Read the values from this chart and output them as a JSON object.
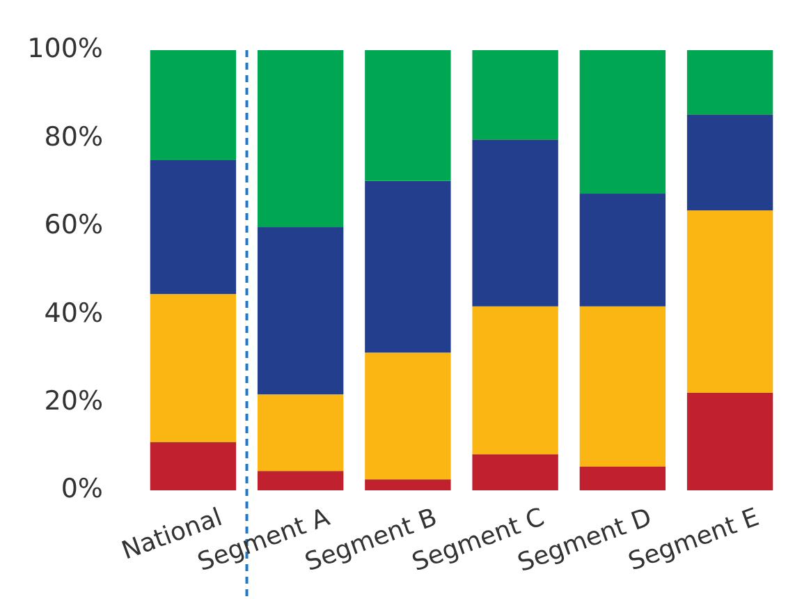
{
  "chart_data": {
    "type": "bar",
    "stacked": true,
    "categories": [
      "National",
      "Segment A",
      "Segment B",
      "Segment C",
      "Segment D",
      "Segment E"
    ],
    "series": [
      {
        "color": "#c1202f",
        "values": [
          11,
          4.4,
          2.5,
          8.2,
          5.4,
          22.2
        ]
      },
      {
        "color": "#fbb614",
        "values": [
          33.6,
          17.4,
          28.8,
          33.6,
          36.4,
          41.4
        ]
      },
      {
        "color": "#243e8e",
        "values": [
          30.4,
          38,
          39,
          37.9,
          25.6,
          21.8
        ]
      },
      {
        "color": "#00a651",
        "values": [
          25,
          40.2,
          29.7,
          20.3,
          32.6,
          14.6
        ]
      }
    ],
    "ylim": [
      0,
      100
    ],
    "yticks": [
      {
        "value": 0,
        "label": "0%"
      },
      {
        "value": 20,
        "label": "20%"
      },
      {
        "value": 40,
        "label": "40%"
      },
      {
        "value": 60,
        "label": "60%"
      },
      {
        "value": 80,
        "label": "80%"
      },
      {
        "value": 100,
        "label": "100%"
      }
    ]
  }
}
